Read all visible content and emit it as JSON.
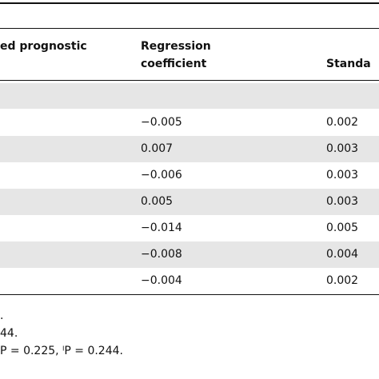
{
  "table": {
    "header": [
      "ed prognostic",
      "Regression coefficient",
      "Standa"
    ],
    "rows": [
      {
        "coefficient": "−0.005",
        "se": "0.002"
      },
      {
        "coefficient": "0.007",
        "se": "0.003"
      },
      {
        "coefficient": "−0.006",
        "se": "0.003"
      },
      {
        "coefficient": "0.005",
        "se": "0.003"
      },
      {
        "coefficient": "−0.014",
        "se": "0.005"
      },
      {
        "coefficient": "−0.008",
        "se": "0.004"
      },
      {
        "coefficient": "−0.004",
        "se": "0.002"
      }
    ]
  },
  "footnotes": [
    ".",
    "44.",
    "P = 0.225, ˡP = 0.244."
  ]
}
